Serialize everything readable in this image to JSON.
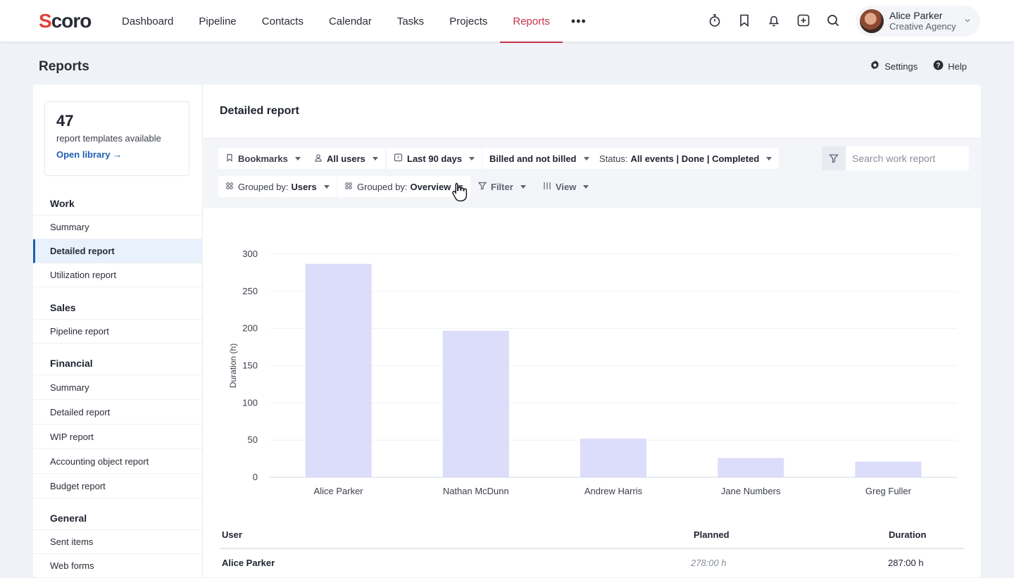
{
  "app": {
    "logo": "Scoro"
  },
  "nav": {
    "items": [
      "Dashboard",
      "Pipeline",
      "Contacts",
      "Calendar",
      "Tasks",
      "Projects",
      "Reports"
    ],
    "active": "Reports",
    "more": "•••"
  },
  "topbar_icons": [
    "timer-icon",
    "bookmark-icon",
    "bell-icon",
    "add-icon",
    "search-icon"
  ],
  "user": {
    "name": "Alice Parker",
    "org": "Creative Agency"
  },
  "page": {
    "title": "Reports",
    "settings_label": "Settings",
    "help_label": "Help"
  },
  "library": {
    "count": "47",
    "desc": "report templates available",
    "link": "Open library →"
  },
  "sidebar": {
    "work": {
      "head": "Work",
      "items": [
        "Summary",
        "Detailed report",
        "Utilization report"
      ]
    },
    "sales": {
      "head": "Sales",
      "items": [
        "Pipeline report"
      ]
    },
    "financial": {
      "head": "Financial",
      "items": [
        "Summary",
        "Detailed report",
        "WIP report",
        "Accounting object report",
        "Budget report"
      ]
    },
    "general": {
      "head": "General",
      "items": [
        "Sent items",
        "Web forms"
      ]
    },
    "active_item": "Detailed report"
  },
  "report": {
    "title": "Detailed report",
    "filters": {
      "bookmarks": "Bookmarks",
      "users": "All users",
      "period": "Last 90 days",
      "billing": "Billed and not billed",
      "status_prefix": "Status:",
      "status_value": "All events | Done | Completed",
      "group1_prefix": "Grouped by:",
      "group1_value": "Users",
      "group2_prefix": "Grouped by:",
      "group2_value": "Overview",
      "filter": "Filter",
      "view": "View"
    },
    "search_placeholder": "Search work report"
  },
  "chart_data": {
    "type": "bar",
    "categories": [
      "Alice Parker",
      "Nathan McDunn",
      "Andrew Harris",
      "Jane Numbers",
      "Greg Fuller"
    ],
    "values": [
      287,
      197,
      52,
      26,
      21
    ],
    "ylabel": "Duration (h)",
    "xlabel": "",
    "ylim": [
      0,
      300
    ],
    "yticks": [
      0,
      50,
      100,
      150,
      200,
      250,
      300
    ],
    "grid": true,
    "bar_color": "#dcdcfb"
  },
  "table": {
    "headers": {
      "user": "User",
      "planned": "Planned",
      "duration": "Duration"
    },
    "rows": [
      {
        "user": "Alice Parker",
        "planned": "278:00 h",
        "duration": "287:00 h"
      }
    ]
  }
}
